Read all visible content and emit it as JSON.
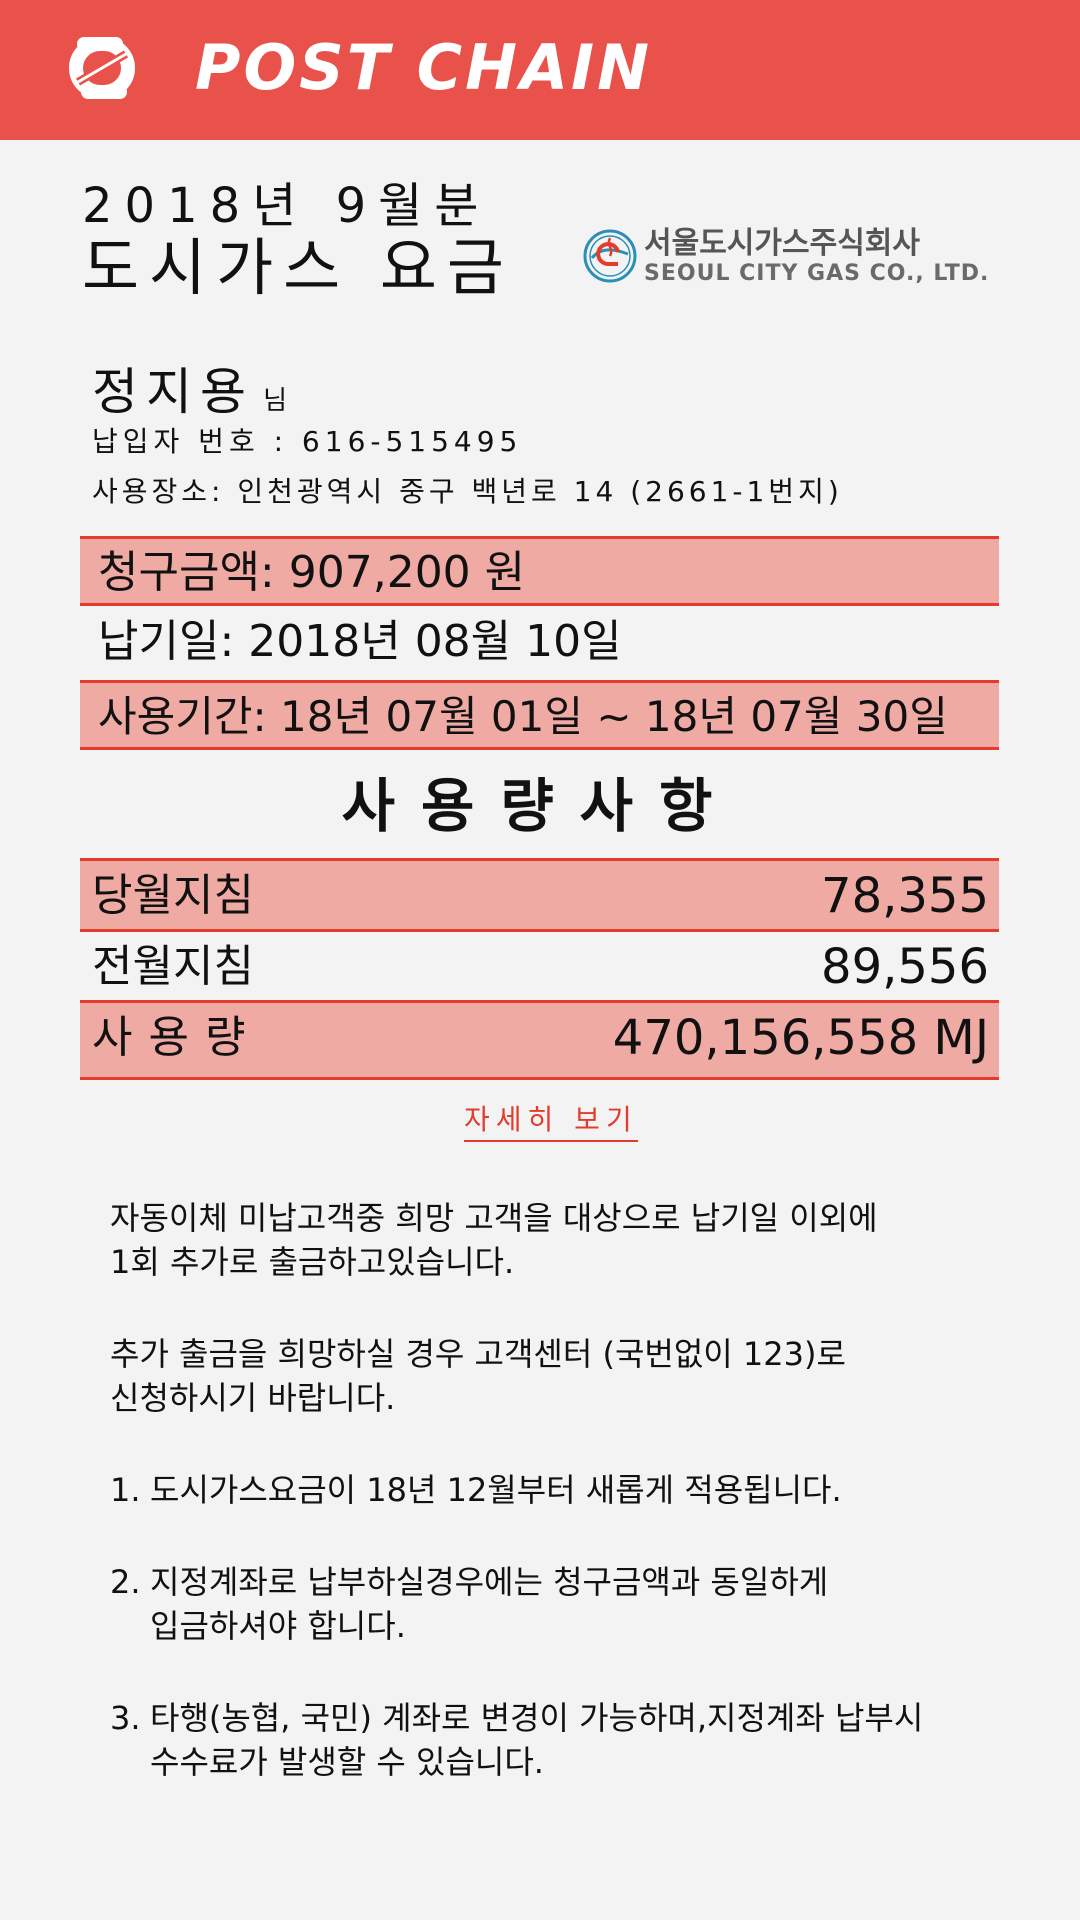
{
  "header": {
    "brand": "POST CHAIN",
    "bg_color": "#e9524a"
  },
  "bill": {
    "period_label": "2018년 9월분",
    "title": "도시가스 요금",
    "company_kor": "서울도시가스주식회사",
    "company_eng": "SEOUL CITY GAS CO., LTD.",
    "customer_name": "정지용",
    "customer_suffix": "님",
    "payer_number": "납입자 번호 : 616-515495",
    "address": "사용장소: 인천광역시 중구 백년로 14 (2661-1번지)",
    "amount": "청구금액: 907,200 원",
    "due_date": "납기일: 2018년 08월 10일",
    "usage_period": "사용기간: 18년 07월 01일 ~ 18년 07월 30일"
  },
  "usage": {
    "title": "사용량사항",
    "rows": [
      {
        "label": "당월지침",
        "value": "78,355"
      },
      {
        "label": "전월지침",
        "value": "89,556"
      },
      {
        "label": "사용량",
        "value": "470,156,558 MJ"
      }
    ],
    "detail_link": "자세히 보기"
  },
  "notices": {
    "paragraphs": [
      [
        "자동이체 미납고객중 희망 고객을 대상으로 납기일 이외에",
        "1회 추가로 출금하고있습니다."
      ],
      [
        "추가 출금을 희망하실 경우 고객센터 (국번없이 123)로",
        "신청하시기 바랍니다."
      ]
    ],
    "items": [
      {
        "num": "1.",
        "lines": [
          " 도시가스요금이 18년 12월부터 새롭게 적용됩니다."
        ]
      },
      {
        "num": "2.",
        "lines": [
          "지정계좌로 납부하실경우에는 청구금액과 동일하게",
          "입금하셔야 합니다."
        ]
      },
      {
        "num": "3.",
        "lines": [
          "타행(농협, 국민) 계좌로 변경이 가능하며,지정계좌 납부시",
          "수수료가 발생할 수 있습니다."
        ]
      }
    ]
  },
  "colors": {
    "accent_red": "#e33c2e",
    "row_pink": "#f0aaa4"
  }
}
